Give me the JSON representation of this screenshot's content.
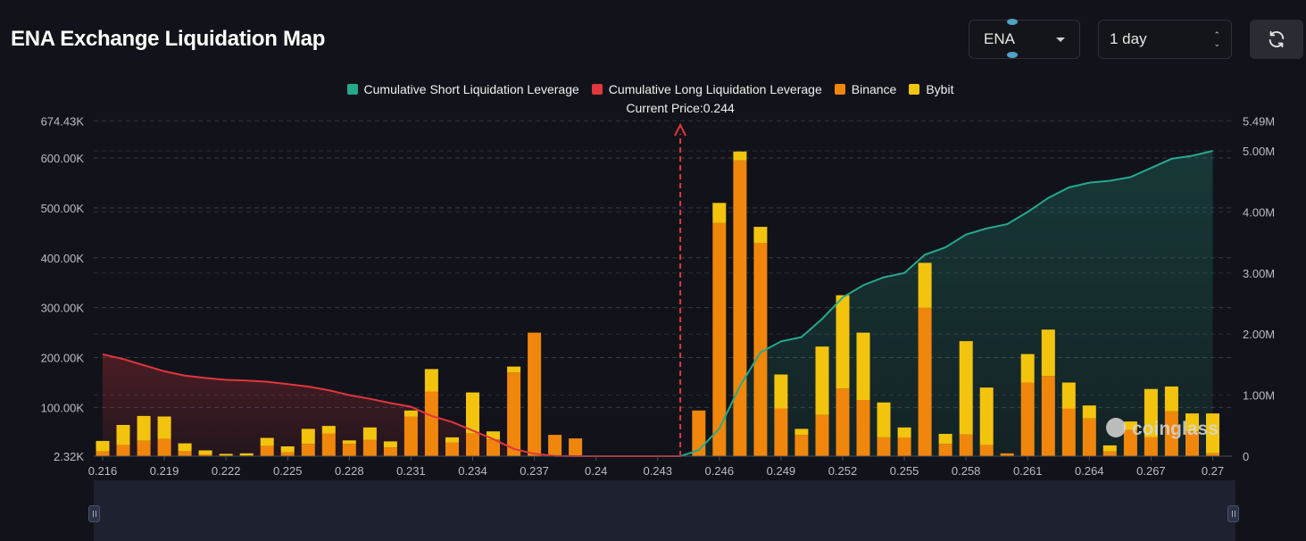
{
  "header": {
    "title": "ENA Exchange Liquidation Map",
    "symbol_value": "ENA",
    "period_value": "1 day"
  },
  "legend": [
    {
      "label": "Cumulative Short Liquidation Leverage",
      "color": "#26a98b"
    },
    {
      "label": "Cumulative Long Liquidation Leverage",
      "color": "#e0363e"
    },
    {
      "label": "Binance",
      "color": "#f0860c"
    },
    {
      "label": "Bybit",
      "color": "#f2c40d"
    }
  ],
  "watermark": "coinglass",
  "colors": {
    "background": "#12131a",
    "grid": "#363946",
    "axis_text": "#b8bcc6",
    "short_line": "#26a98b",
    "long_line": "#e0363e",
    "binance": "#f0860c",
    "bybit": "#f2c40d",
    "price_marker": "#e0363e"
  },
  "chart_data": {
    "type": "bar",
    "current_price_label": "Current Price:0.244",
    "current_price": 0.2441,
    "x_tick_labels": [
      "0.216",
      "0.219",
      "0.222",
      "0.225",
      "0.228",
      "0.231",
      "0.234",
      "0.237",
      "0.24",
      "0.243",
      "0.246",
      "0.249",
      "0.252",
      "0.255",
      "0.258",
      "0.261",
      "0.264",
      "0.267",
      "0.27"
    ],
    "x_ticks": [
      0.216,
      0.219,
      0.222,
      0.225,
      0.228,
      0.231,
      0.234,
      0.237,
      0.24,
      0.243,
      0.246,
      0.249,
      0.252,
      0.255,
      0.258,
      0.261,
      0.264,
      0.267,
      0.27
    ],
    "xlim": [
      0.216,
      0.2705
    ],
    "y_left_tick_labels": [
      "2.32K",
      "100.00K",
      "200.00K",
      "300.00K",
      "400.00K",
      "500.00K",
      "600.00K",
      "674.43K"
    ],
    "y_left_ticks": [
      2320,
      100000,
      200000,
      300000,
      400000,
      500000,
      600000,
      674430
    ],
    "y_left_lim": [
      2320,
      674430
    ],
    "y_right_tick_labels": [
      "0",
      "1.00M",
      "2.00M",
      "3.00M",
      "4.00M",
      "5.00M",
      "5.49M"
    ],
    "y_right_ticks": [
      0,
      1000000,
      2000000,
      3000000,
      4000000,
      5000000,
      5490000
    ],
    "y_right_lim": [
      0,
      5490000
    ],
    "bars": {
      "x": [
        0.216,
        0.217,
        0.218,
        0.219,
        0.22,
        0.221,
        0.222,
        0.223,
        0.224,
        0.225,
        0.226,
        0.227,
        0.228,
        0.229,
        0.23,
        0.231,
        0.232,
        0.233,
        0.234,
        0.235,
        0.236,
        0.237,
        0.238,
        0.239,
        0.245,
        0.246,
        0.247,
        0.248,
        0.249,
        0.25,
        0.251,
        0.252,
        0.253,
        0.254,
        0.255,
        0.256,
        0.257,
        0.258,
        0.259,
        0.26,
        0.261,
        0.262,
        0.263,
        0.264,
        0.265,
        0.266,
        0.267,
        0.268,
        0.269,
        0.27
      ],
      "binance": [
        12000,
        25000,
        33000,
        37000,
        12000,
        6000,
        4000,
        4000,
        23000,
        10000,
        27000,
        48000,
        27000,
        35000,
        20000,
        82000,
        132000,
        30000,
        48000,
        36000,
        170000,
        250000,
        45000,
        38000,
        94000,
        470000,
        595000,
        430000,
        98000,
        45000,
        85000,
        138000,
        115000,
        40000,
        40000,
        300000,
        27000,
        46000,
        25000,
        8000,
        150000,
        163000,
        98000,
        78000,
        12000,
        55000,
        40000,
        92000,
        52000,
        8000
      ],
      "bybit": [
        21000,
        40000,
        50000,
        45000,
        16000,
        8000,
        3000,
        4000,
        16000,
        12000,
        30000,
        15000,
        7000,
        25000,
        12000,
        12000,
        45000,
        10000,
        82000,
        16000,
        12000,
        0,
        0,
        0,
        0,
        40000,
        18000,
        32000,
        68000,
        12000,
        137000,
        187000,
        135000,
        70000,
        20000,
        90000,
        20000,
        187000,
        115000,
        0,
        57000,
        93000,
        52000,
        26000,
        12000,
        17000,
        97000,
        50000,
        36000,
        80000
      ]
    },
    "long_cumulative": {
      "x": [
        0.216,
        0.217,
        0.218,
        0.219,
        0.22,
        0.221,
        0.222,
        0.223,
        0.224,
        0.225,
        0.226,
        0.227,
        0.228,
        0.229,
        0.23,
        0.231,
        0.232,
        0.233,
        0.234,
        0.235,
        0.236,
        0.237,
        0.238,
        0.239,
        0.24,
        0.241,
        0.242,
        0.243,
        0.2441
      ],
      "values": [
        1670000,
        1590000,
        1490000,
        1390000,
        1320000,
        1280000,
        1250000,
        1240000,
        1220000,
        1180000,
        1140000,
        1080000,
        1000000,
        940000,
        870000,
        810000,
        660000,
        560000,
        420000,
        280000,
        120000,
        40000,
        5000,
        0,
        0,
        0,
        0,
        0,
        0
      ]
    },
    "short_cumulative": {
      "x": [
        0.2441,
        0.245,
        0.246,
        0.247,
        0.248,
        0.249,
        0.25,
        0.251,
        0.252,
        0.253,
        0.254,
        0.255,
        0.256,
        0.257,
        0.258,
        0.259,
        0.26,
        0.261,
        0.262,
        0.263,
        0.264,
        0.265,
        0.266,
        0.267,
        0.268,
        0.269,
        0.27
      ],
      "values": [
        0,
        100000,
        450000,
        1150000,
        1700000,
        1880000,
        1950000,
        2250000,
        2600000,
        2800000,
        2930000,
        3000000,
        3300000,
        3420000,
        3630000,
        3730000,
        3800000,
        4000000,
        4230000,
        4400000,
        4480000,
        4510000,
        4570000,
        4720000,
        4870000,
        4920000,
        5000000
      ]
    }
  }
}
